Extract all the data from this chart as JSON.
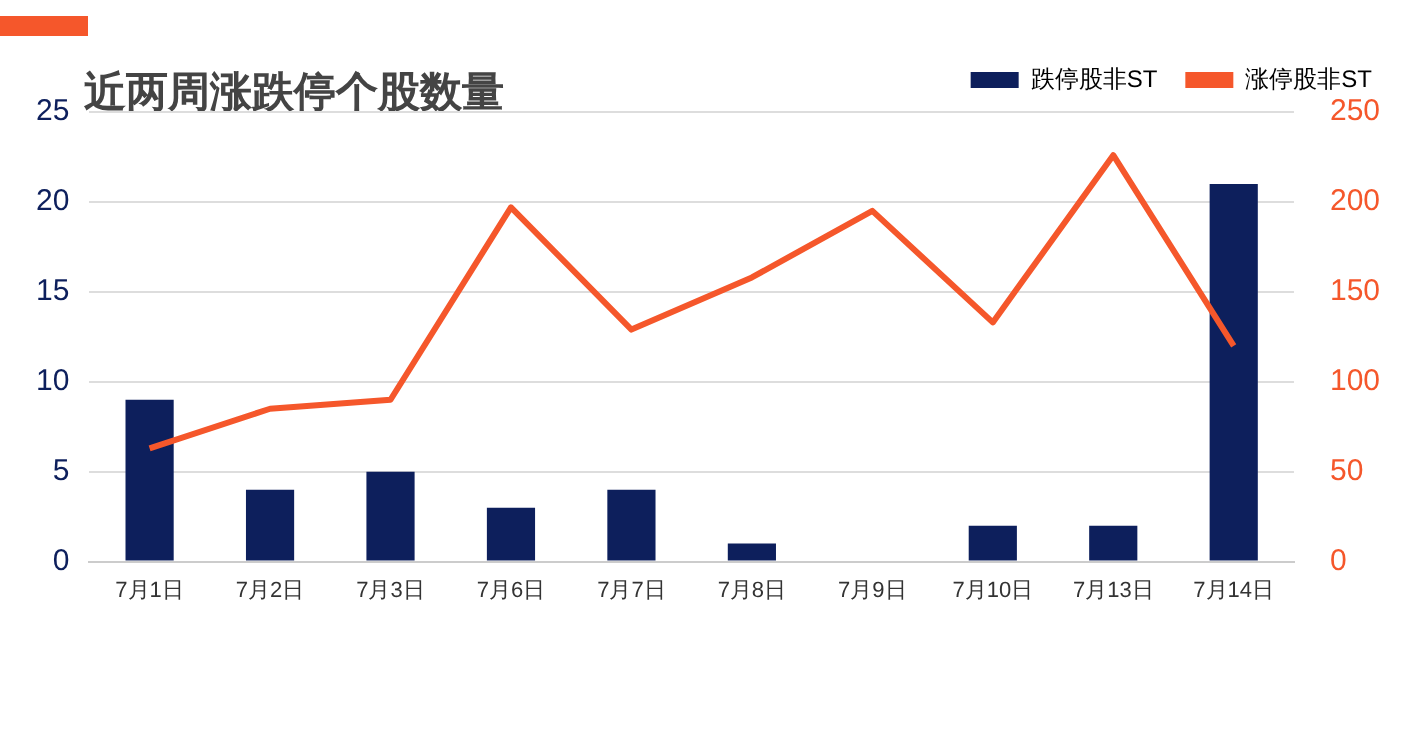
{
  "chart_data": {
    "type": "bar",
    "title": "近两周涨跌停个股数量",
    "categories": [
      "7月1日",
      "7月2日",
      "7月3日",
      "7月6日",
      "7月7日",
      "7月8日",
      "7月9日",
      "7月10日",
      "7月13日",
      "7月14日"
    ],
    "series": [
      {
        "name": "跌停股非ST",
        "color": "#0d1f5c",
        "values": [
          9,
          4,
          5,
          3,
          4,
          1,
          0,
          2,
          2,
          21
        ]
      },
      {
        "name": "涨停股非ST",
        "color": "#f5572b",
        "type": "line",
        "axis": "y2",
        "values": [
          63,
          85,
          90,
          197,
          129,
          158,
          195,
          133,
          226,
          120
        ]
      }
    ],
    "ylim": [
      0,
      25
    ],
    "yticks": [
      0,
      5,
      10,
      15,
      20,
      25
    ],
    "y2lim": [
      0,
      250
    ],
    "y2ticks": [
      0,
      50,
      100,
      150,
      200,
      250
    ],
    "grid": "y",
    "legend": "top right",
    "marker": "none"
  }
}
